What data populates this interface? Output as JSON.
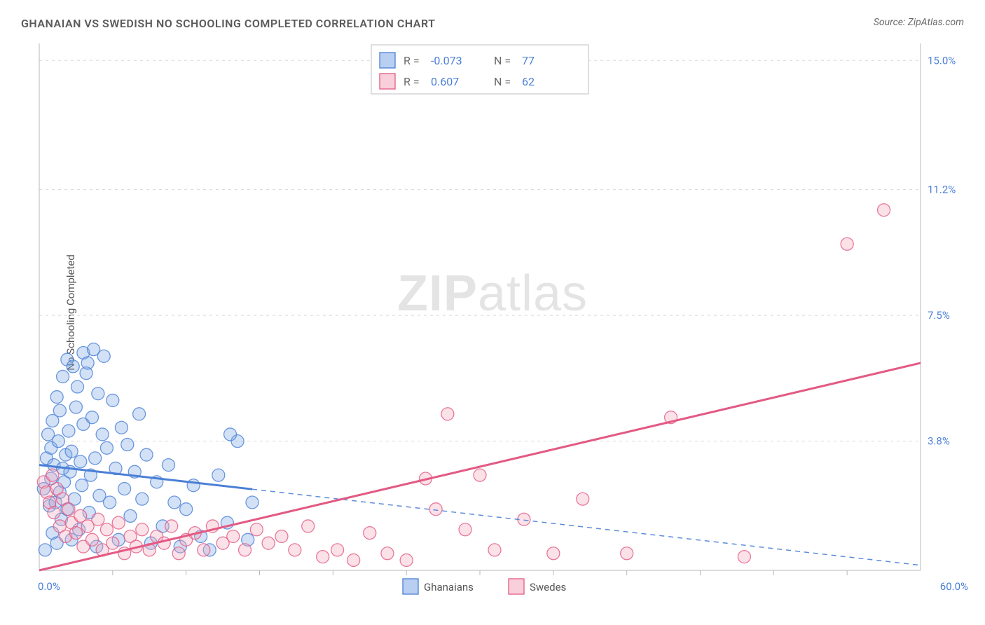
{
  "title": "GHANAIAN VS SWEDISH NO SCHOOLING COMPLETED CORRELATION CHART",
  "source_label": "Source:",
  "source_value": "ZipAtlas.com",
  "ylabel": "No Schooling Completed",
  "watermark_a": "ZIP",
  "watermark_b": "atlas",
  "plot": {
    "type": "scatter-with-regression",
    "xlim": [
      0,
      60
    ],
    "ylim": [
      0,
      15.5
    ],
    "x_ticks": [
      {
        "v": 0.0,
        "label": "0.0%"
      },
      {
        "v": 60.0,
        "label": "60.0%"
      }
    ],
    "x_minor_ticks": [
      5,
      10,
      15,
      20,
      25,
      30,
      35,
      40,
      45,
      50,
      55
    ],
    "y_ticks": [
      {
        "v": 3.8,
        "label": "3.8%"
      },
      {
        "v": 7.5,
        "label": "7.5%"
      },
      {
        "v": 11.2,
        "label": "11.2%"
      },
      {
        "v": 15.0,
        "label": "15.0%"
      }
    ],
    "grid_color": "#d8d8d8",
    "axis_color": "#b8b8b8",
    "background_color": "#ffffff",
    "series": [
      {
        "name": "Ghanaians",
        "color_fill": "#7fa8e6",
        "color_stroke": "#4a7fd6",
        "fill_opacity": 0.35,
        "marker_radius": 9,
        "reg_line": {
          "x1": 0,
          "y1": 3.1,
          "x2": 60,
          "y2": 0.15,
          "solid_until_x": 14.5,
          "stroke_width": 3
        },
        "points": [
          [
            0.3,
            2.4
          ],
          [
            0.4,
            0.6
          ],
          [
            0.5,
            3.3
          ],
          [
            0.6,
            4.0
          ],
          [
            0.7,
            1.9
          ],
          [
            0.8,
            2.7
          ],
          [
            0.8,
            3.6
          ],
          [
            0.9,
            4.4
          ],
          [
            0.9,
            1.1
          ],
          [
            1.0,
            3.1
          ],
          [
            1.1,
            2.0
          ],
          [
            1.2,
            5.1
          ],
          [
            1.2,
            0.8
          ],
          [
            1.3,
            3.8
          ],
          [
            1.4,
            2.3
          ],
          [
            1.4,
            4.7
          ],
          [
            1.5,
            1.5
          ],
          [
            1.6,
            3.0
          ],
          [
            1.6,
            5.7
          ],
          [
            1.7,
            2.6
          ],
          [
            1.8,
            3.4
          ],
          [
            1.9,
            6.2
          ],
          [
            1.9,
            1.8
          ],
          [
            2.0,
            4.1
          ],
          [
            2.1,
            2.9
          ],
          [
            2.2,
            0.9
          ],
          [
            2.2,
            3.5
          ],
          [
            2.3,
            6.0
          ],
          [
            2.4,
            2.1
          ],
          [
            2.5,
            4.8
          ],
          [
            2.6,
            5.4
          ],
          [
            2.7,
            1.2
          ],
          [
            2.8,
            3.2
          ],
          [
            2.9,
            2.5
          ],
          [
            3.0,
            6.4
          ],
          [
            3.0,
            4.3
          ],
          [
            3.2,
            5.8
          ],
          [
            3.3,
            6.1
          ],
          [
            3.4,
            1.7
          ],
          [
            3.5,
            2.8
          ],
          [
            3.6,
            4.5
          ],
          [
            3.7,
            6.5
          ],
          [
            3.8,
            3.3
          ],
          [
            3.9,
            0.7
          ],
          [
            4.0,
            5.2
          ],
          [
            4.1,
            2.2
          ],
          [
            4.3,
            4.0
          ],
          [
            4.4,
            6.3
          ],
          [
            4.6,
            3.6
          ],
          [
            4.8,
            2.0
          ],
          [
            5.0,
            5.0
          ],
          [
            5.2,
            3.0
          ],
          [
            5.4,
            0.9
          ],
          [
            5.6,
            4.2
          ],
          [
            5.8,
            2.4
          ],
          [
            6.0,
            3.7
          ],
          [
            6.2,
            1.6
          ],
          [
            6.5,
            2.9
          ],
          [
            6.8,
            4.6
          ],
          [
            7.0,
            2.1
          ],
          [
            7.3,
            3.4
          ],
          [
            7.6,
            0.8
          ],
          [
            8.0,
            2.6
          ],
          [
            8.4,
            1.3
          ],
          [
            8.8,
            3.1
          ],
          [
            9.2,
            2.0
          ],
          [
            9.6,
            0.7
          ],
          [
            10.0,
            1.8
          ],
          [
            10.5,
            2.5
          ],
          [
            11.0,
            1.0
          ],
          [
            11.6,
            0.6
          ],
          [
            12.2,
            2.8
          ],
          [
            12.8,
            1.4
          ],
          [
            13.5,
            3.8
          ],
          [
            14.2,
            0.9
          ],
          [
            14.5,
            2.0
          ],
          [
            13.0,
            4.0
          ]
        ]
      },
      {
        "name": "Swedes",
        "color_fill": "#f4a8bd",
        "color_stroke": "#e35a84",
        "fill_opacity": 0.35,
        "marker_radius": 9,
        "reg_line": {
          "x1": 0,
          "y1": 0.0,
          "x2": 60,
          "y2": 6.1,
          "solid_until_x": 60,
          "stroke_width": 3
        },
        "points": [
          [
            0.3,
            2.6
          ],
          [
            0.5,
            2.3
          ],
          [
            0.7,
            2.0
          ],
          [
            0.9,
            2.8
          ],
          [
            1.0,
            1.7
          ],
          [
            1.2,
            2.4
          ],
          [
            1.4,
            1.3
          ],
          [
            1.6,
            2.1
          ],
          [
            1.8,
            1.0
          ],
          [
            2.0,
            1.8
          ],
          [
            2.2,
            1.4
          ],
          [
            2.5,
            1.1
          ],
          [
            2.8,
            1.6
          ],
          [
            3.0,
            0.7
          ],
          [
            3.3,
            1.3
          ],
          [
            3.6,
            0.9
          ],
          [
            4.0,
            1.5
          ],
          [
            4.3,
            0.6
          ],
          [
            4.6,
            1.2
          ],
          [
            5.0,
            0.8
          ],
          [
            5.4,
            1.4
          ],
          [
            5.8,
            0.5
          ],
          [
            6.2,
            1.0
          ],
          [
            6.6,
            0.7
          ],
          [
            7.0,
            1.2
          ],
          [
            7.5,
            0.6
          ],
          [
            8.0,
            1.0
          ],
          [
            8.5,
            0.8
          ],
          [
            9.0,
            1.3
          ],
          [
            9.5,
            0.5
          ],
          [
            10.0,
            0.9
          ],
          [
            10.6,
            1.1
          ],
          [
            11.2,
            0.6
          ],
          [
            11.8,
            1.3
          ],
          [
            12.5,
            0.8
          ],
          [
            13.2,
            1.0
          ],
          [
            14.0,
            0.6
          ],
          [
            14.8,
            1.2
          ],
          [
            15.6,
            0.8
          ],
          [
            16.5,
            1.0
          ],
          [
            17.4,
            0.6
          ],
          [
            18.3,
            1.3
          ],
          [
            19.3,
            0.4
          ],
          [
            20.3,
            0.6
          ],
          [
            21.4,
            0.3
          ],
          [
            22.5,
            1.1
          ],
          [
            23.7,
            0.5
          ],
          [
            25.0,
            0.3
          ],
          [
            26.3,
            2.7
          ],
          [
            27.0,
            1.8
          ],
          [
            27.8,
            4.6
          ],
          [
            29.0,
            1.2
          ],
          [
            30.0,
            2.8
          ],
          [
            31.0,
            0.6
          ],
          [
            33.0,
            1.5
          ],
          [
            35.0,
            0.5
          ],
          [
            37.0,
            2.1
          ],
          [
            40.0,
            0.5
          ],
          [
            43.0,
            4.5
          ],
          [
            48.0,
            0.4
          ],
          [
            55.0,
            9.6
          ],
          [
            57.5,
            10.6
          ]
        ]
      }
    ],
    "top_legend": {
      "box_stroke": "#bfbfbf",
      "box_fill": "#ffffff",
      "rows": [
        {
          "swatch_fill": "#7fa8e6",
          "swatch_stroke": "#4a7fd6",
          "r_label": "R =",
          "r_value": "-0.073",
          "n_label": "N =",
          "n_value": "77"
        },
        {
          "swatch_fill": "#f4a8bd",
          "swatch_stroke": "#e35a84",
          "r_label": "R =",
          "r_value": "0.607",
          "n_label": "N =",
          "n_value": "62"
        }
      ],
      "label_color": "#6a6a6a",
      "value_color": "#4a7fd6"
    },
    "bottom_legend": [
      {
        "swatch_fill": "#7fa8e6",
        "swatch_stroke": "#4a7fd6",
        "label": "Ghanaians"
      },
      {
        "swatch_fill": "#f4a8bd",
        "swatch_stroke": "#e35a84",
        "label": "Swedes"
      }
    ]
  }
}
